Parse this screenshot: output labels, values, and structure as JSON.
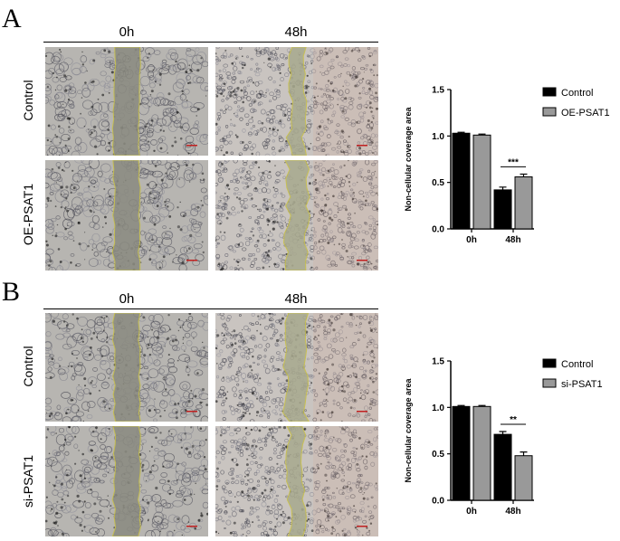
{
  "panels": [
    {
      "letter": "A",
      "columns": [
        "0h",
        "48h"
      ],
      "rows": [
        "Control",
        "OE-PSAT1"
      ],
      "chart_data": {
        "type": "bar",
        "ylabel": "Non-cellular coverage area",
        "xlabel": "",
        "categories": [
          "0h",
          "48h"
        ],
        "ylim": [
          0,
          1.5
        ],
        "yticks": [
          "0.0",
          "0.5",
          "1.0",
          "1.5"
        ],
        "series": [
          {
            "name": "Control",
            "values": [
              1.03,
              0.42
            ],
            "errors": [
              0.01,
              0.03
            ],
            "color": "#000000"
          },
          {
            "name": "OE-PSAT1",
            "values": [
              1.01,
              0.56
            ],
            "errors": [
              0.01,
              0.03
            ],
            "color": "#999999"
          }
        ],
        "annotations": [
          {
            "category": "48h",
            "text": "***"
          }
        ],
        "legend_position": "top-right"
      }
    },
    {
      "letter": "B",
      "columns": [
        "0h",
        "48h"
      ],
      "rows": [
        "Control",
        "si-PSAT1"
      ],
      "chart_data": {
        "type": "bar",
        "ylabel": "Non-cellular coverage area",
        "xlabel": "",
        "categories": [
          "0h",
          "48h"
        ],
        "ylim": [
          0,
          1.5
        ],
        "yticks": [
          "0.0",
          "0.5",
          "1.0",
          "1.5"
        ],
        "series": [
          {
            "name": "Control",
            "values": [
              1.01,
              0.71
            ],
            "errors": [
              0.01,
              0.03
            ],
            "color": "#000000"
          },
          {
            "name": "si-PSAT1",
            "values": [
              1.01,
              0.48
            ],
            "errors": [
              0.01,
              0.04
            ],
            "color": "#999999"
          }
        ],
        "annotations": [
          {
            "category": "48h",
            "text": "**"
          }
        ],
        "legend_position": "top-right"
      }
    }
  ]
}
